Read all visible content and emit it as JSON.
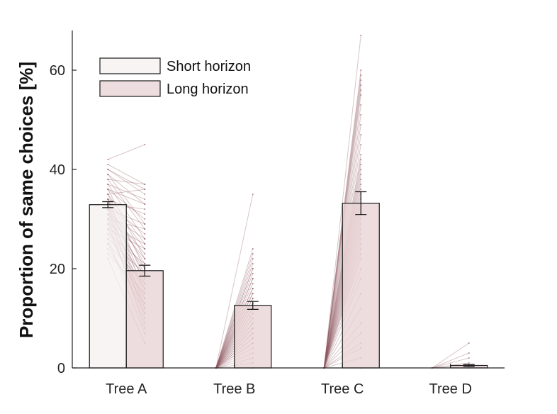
{
  "chart_data": {
    "type": "bar",
    "ylabel": "Proportion of same choices [%]",
    "xlabel": "",
    "ylim": [
      0,
      68
    ],
    "yticks": [
      0,
      20,
      40,
      60
    ],
    "categories": [
      "Tree A",
      "Tree B",
      "Tree C",
      "Tree D"
    ],
    "legend_position": "top-left",
    "grid": false,
    "series": [
      {
        "name": "Short horizon",
        "color": "#f6f1f1",
        "values": [
          32.9,
          0,
          0,
          0
        ],
        "errors": [
          0.6,
          0,
          0,
          0
        ]
      },
      {
        "name": "Long horizon",
        "color": "#e9d4d5",
        "values": [
          19.6,
          12.6,
          33.2,
          0.5
        ],
        "errors": [
          1.1,
          0.8,
          2.3,
          0.2
        ]
      }
    ],
    "line_color": "#8e5a60",
    "subjects": {
      "Tree A": [
        [
          42,
          45
        ],
        [
          41,
          37
        ],
        [
          40,
          36
        ],
        [
          40,
          35
        ],
        [
          39,
          33
        ],
        [
          39,
          29
        ],
        [
          38,
          37
        ],
        [
          38,
          28
        ],
        [
          37,
          34
        ],
        [
          37,
          26
        ],
        [
          36,
          33
        ],
        [
          36,
          30
        ],
        [
          36,
          22
        ],
        [
          35,
          36
        ],
        [
          35,
          25
        ],
        [
          35,
          20
        ],
        [
          34,
          31
        ],
        [
          34,
          24
        ],
        [
          34,
          18
        ],
        [
          34,
          15
        ],
        [
          33,
          32
        ],
        [
          33,
          27
        ],
        [
          33,
          21
        ],
        [
          33,
          17
        ],
        [
          33,
          12
        ],
        [
          32,
          29
        ],
        [
          32,
          23
        ],
        [
          32,
          19
        ],
        [
          32,
          14
        ],
        [
          32,
          10
        ],
        [
          31,
          26
        ],
        [
          31,
          22
        ],
        [
          31,
          16
        ],
        [
          31,
          11
        ],
        [
          30,
          28
        ],
        [
          30,
          20
        ],
        [
          30,
          13
        ],
        [
          30,
          8
        ],
        [
          29,
          25
        ],
        [
          29,
          18
        ],
        [
          29,
          9
        ],
        [
          28,
          24
        ],
        [
          28,
          16
        ],
        [
          28,
          12
        ],
        [
          27,
          21
        ],
        [
          27,
          14
        ],
        [
          26,
          19
        ],
        [
          26,
          7
        ],
        [
          25,
          17
        ],
        [
          25,
          11
        ],
        [
          24,
          13
        ],
        [
          23,
          15
        ],
        [
          22,
          5
        ]
      ],
      "Tree B": [
        [
          0,
          35
        ],
        [
          0,
          24
        ],
        [
          0,
          23
        ],
        [
          0,
          22
        ],
        [
          0,
          21
        ],
        [
          0,
          20
        ],
        [
          0,
          20
        ],
        [
          0,
          19
        ],
        [
          0,
          18
        ],
        [
          0,
          18
        ],
        [
          0,
          17
        ],
        [
          0,
          16
        ],
        [
          0,
          16
        ],
        [
          0,
          15
        ],
        [
          0,
          15
        ],
        [
          0,
          14
        ],
        [
          0,
          14
        ],
        [
          0,
          13
        ],
        [
          0,
          13
        ],
        [
          0,
          12
        ],
        [
          0,
          12
        ],
        [
          0,
          11
        ],
        [
          0,
          11
        ],
        [
          0,
          10
        ],
        [
          0,
          10
        ],
        [
          0,
          9
        ],
        [
          0,
          9
        ],
        [
          0,
          8
        ],
        [
          0,
          8
        ],
        [
          0,
          7
        ],
        [
          0,
          7
        ],
        [
          0,
          6
        ],
        [
          0,
          6
        ],
        [
          0,
          5
        ],
        [
          0,
          5
        ],
        [
          0,
          4
        ],
        [
          0,
          3
        ],
        [
          0,
          2
        ],
        [
          0,
          1
        ],
        [
          0,
          0
        ]
      ],
      "Tree C": [
        [
          0,
          67
        ],
        [
          0,
          60
        ],
        [
          0,
          59
        ],
        [
          0,
          58
        ],
        [
          0,
          57
        ],
        [
          0,
          56
        ],
        [
          0,
          55
        ],
        [
          0,
          53
        ],
        [
          0,
          51
        ],
        [
          0,
          49
        ],
        [
          0,
          47
        ],
        [
          0,
          45
        ],
        [
          0,
          43
        ],
        [
          0,
          42
        ],
        [
          0,
          41
        ],
        [
          0,
          40
        ],
        [
          0,
          39
        ],
        [
          0,
          38
        ],
        [
          0,
          37
        ],
        [
          0,
          36
        ],
        [
          0,
          35
        ],
        [
          0,
          34
        ],
        [
          0,
          33
        ],
        [
          0,
          32
        ],
        [
          0,
          31
        ],
        [
          0,
          30
        ],
        [
          0,
          29
        ],
        [
          0,
          28
        ],
        [
          0,
          27
        ],
        [
          0,
          26
        ],
        [
          0,
          25
        ],
        [
          0,
          24
        ],
        [
          0,
          23
        ],
        [
          0,
          22
        ],
        [
          0,
          20
        ],
        [
          0,
          18
        ],
        [
          0,
          15
        ],
        [
          0,
          12
        ],
        [
          0,
          9
        ],
        [
          0,
          7
        ],
        [
          0,
          5
        ],
        [
          0,
          4
        ],
        [
          0,
          2
        ],
        [
          0,
          0
        ]
      ],
      "Tree D": [
        [
          0,
          5
        ],
        [
          0,
          3
        ],
        [
          0,
          2
        ],
        [
          0,
          1
        ],
        [
          0,
          0.5
        ],
        [
          0,
          0
        ]
      ]
    }
  }
}
